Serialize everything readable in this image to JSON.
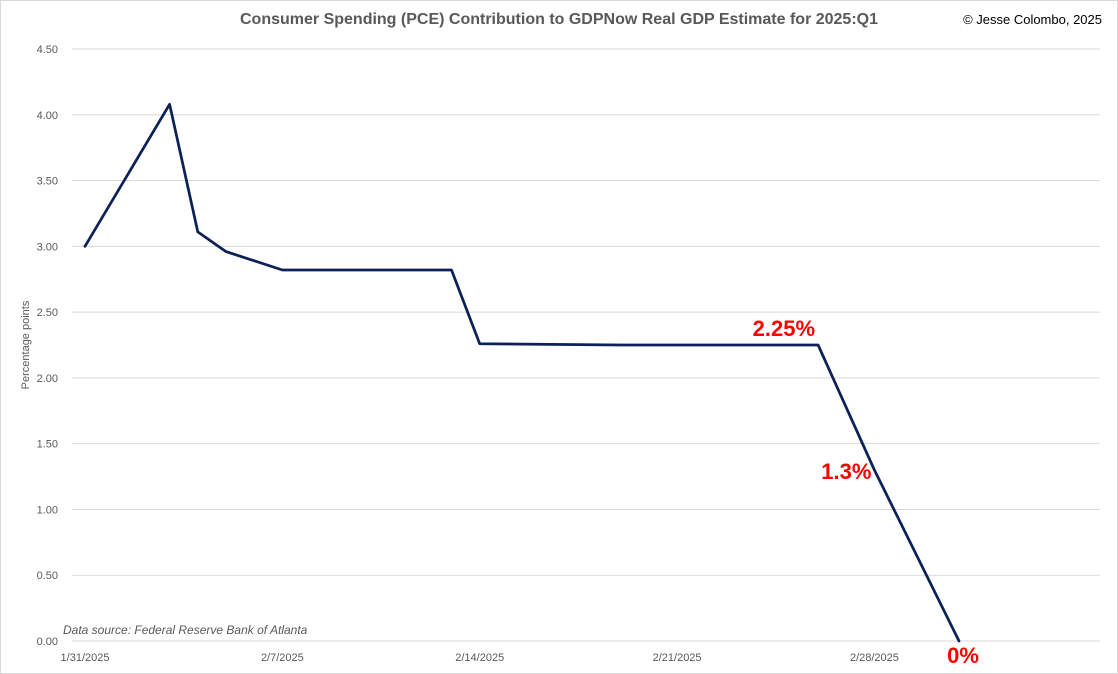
{
  "chart_data": {
    "type": "line",
    "title": "Consumer Spending (PCE) Contribution to GDPNow Real GDP Estimate for 2025:Q1",
    "credit": "© Jesse Colombo, 2025",
    "source_note": "Data source: Federal Reserve Bank of Atlanta",
    "xlabel": "",
    "ylabel": "Percentage points",
    "ylim": [
      0,
      4.5
    ],
    "yticks": [
      "0.00",
      "0.50",
      "1.00",
      "1.50",
      "2.00",
      "2.50",
      "3.00",
      "3.50",
      "4.00",
      "4.50"
    ],
    "x_tick_labels": [
      "1/31/2025",
      "2/7/2025",
      "2/14/2025",
      "2/21/2025",
      "2/28/2025"
    ],
    "grid": true,
    "legend": "none",
    "line_color": "#0c2157",
    "series": [
      {
        "x": [
          "2025-01-31",
          "2025-02-03",
          "2025-02-04",
          "2025-02-05",
          "2025-02-07",
          "2025-02-13",
          "2025-02-14",
          "2025-02-19",
          "2025-02-26",
          "2025-02-28",
          "2025-03-03"
        ],
        "values": [
          3.0,
          4.08,
          3.11,
          2.96,
          2.82,
          2.82,
          2.26,
          2.25,
          2.25,
          1.3,
          0.0
        ]
      }
    ],
    "annotations": [
      {
        "text": "2.25%",
        "x": "2025-02-26",
        "y": 2.25
      },
      {
        "text": "1.3%",
        "x": "2025-02-28",
        "y": 1.3
      },
      {
        "text": "0%",
        "x": "2025-03-03",
        "y": 0.0
      }
    ]
  }
}
